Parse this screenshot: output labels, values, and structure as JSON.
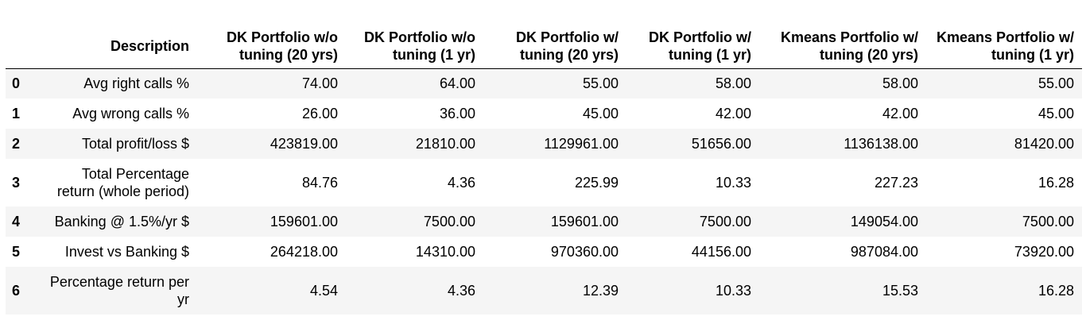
{
  "columns": [
    "Description",
    "DK Portfolio w/o tuning (20 yrs)",
    "DK Portfolio w/o tuning (1 yr)",
    "DK Portfolio w/ tuning (20 yrs)",
    "DK Portfolio w/ tuning (1 yr)",
    "Kmeans Portfolio w/ tuning (20 yrs)",
    "Kmeans Portfolio w/ tuning (1 yr)"
  ],
  "rows": [
    {
      "index": "0",
      "cells": [
        "Avg right calls %",
        "74.00",
        "64.00",
        "55.00",
        "58.00",
        "58.00",
        "55.00"
      ]
    },
    {
      "index": "1",
      "cells": [
        "Avg wrong calls %",
        "26.00",
        "36.00",
        "45.00",
        "42.00",
        "42.00",
        "45.00"
      ]
    },
    {
      "index": "2",
      "cells": [
        "Total profit/loss $",
        "423819.00",
        "21810.00",
        "1129961.00",
        "51656.00",
        "1136138.00",
        "81420.00"
      ]
    },
    {
      "index": "3",
      "cells": [
        "Total Percentage return (whole period)",
        "84.76",
        "4.36",
        "225.99",
        "10.33",
        "227.23",
        "16.28"
      ]
    },
    {
      "index": "4",
      "cells": [
        "Banking @ 1.5%/yr $",
        "159601.00",
        "7500.00",
        "159601.00",
        "7500.00",
        "149054.00",
        "7500.00"
      ]
    },
    {
      "index": "5",
      "cells": [
        "Invest vs Banking $",
        "264218.00",
        "14310.00",
        "970360.00",
        "44156.00",
        "987084.00",
        "73920.00"
      ]
    },
    {
      "index": "6",
      "cells": [
        "Percentage return per yr",
        "4.54",
        "4.36",
        "12.39",
        "10.33",
        "15.53",
        "16.28"
      ]
    }
  ]
}
